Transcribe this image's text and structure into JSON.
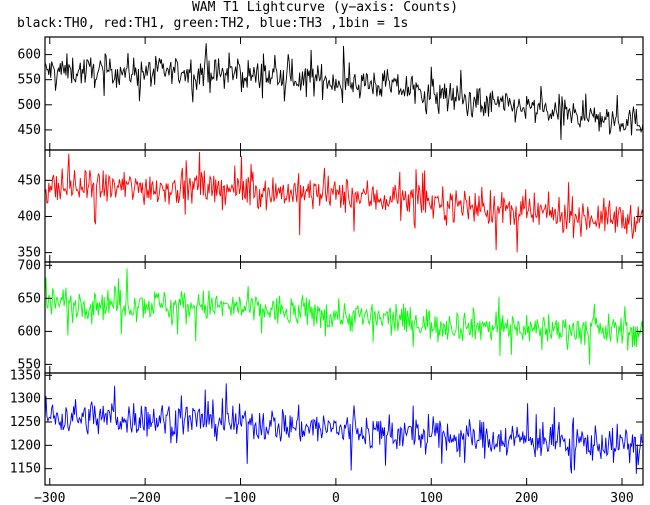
{
  "title": "WAM T1 Lightcurve (y−axis: Counts)",
  "subtitle": "black:TH0, red:TH1, green:TH2, blue:TH3 ,1bin = 1s",
  "colors": {
    "TH0": "#000000",
    "TH1": "#ff0000",
    "TH2": "#00ff00",
    "TH3": "#0000ff"
  },
  "chart_data": {
    "type": "line",
    "x_range": [
      -305,
      322
    ],
    "x_ticks": [
      -300,
      -200,
      -100,
      0,
      100,
      200,
      300
    ],
    "bin_seconds": 1,
    "panels": [
      {
        "name": "TH0",
        "color": "#000000",
        "ylim": [
          410,
          635
        ],
        "y_ticks": [
          450,
          500,
          550,
          600
        ],
        "trend": [
          [
            -305,
            568
          ],
          [
            -150,
            565
          ],
          [
            -50,
            555
          ],
          [
            50,
            540
          ],
          [
            150,
            505
          ],
          [
            250,
            480
          ],
          [
            322,
            465
          ]
        ],
        "noise": 28
      },
      {
        "name": "TH1",
        "color": "#ff0000",
        "ylim": [
          337,
          492
        ],
        "y_ticks": [
          350,
          400,
          450
        ],
        "trend": [
          [
            -305,
            440
          ],
          [
            -150,
            440
          ],
          [
            0,
            430
          ],
          [
            100,
            420
          ],
          [
            200,
            405
          ],
          [
            322,
            395
          ]
        ],
        "noise": 22
      },
      {
        "name": "TH2",
        "color": "#00ff00",
        "ylim": [
          537,
          705
        ],
        "y_ticks": [
          550,
          600,
          650,
          700
        ],
        "trend": [
          [
            -305,
            645
          ],
          [
            -150,
            640
          ],
          [
            0,
            625
          ],
          [
            100,
            612
          ],
          [
            200,
            605
          ],
          [
            322,
            600
          ]
        ],
        "noise": 22
      },
      {
        "name": "TH3",
        "color": "#0000ff",
        "ylim": [
          1115,
          1355
        ],
        "y_ticks": [
          1150,
          1200,
          1250,
          1300,
          1350
        ],
        "trend": [
          [
            -305,
            1262
          ],
          [
            -150,
            1255
          ],
          [
            0,
            1235
          ],
          [
            100,
            1220
          ],
          [
            200,
            1212
          ],
          [
            322,
            1200
          ]
        ],
        "noise": 35
      }
    ]
  }
}
